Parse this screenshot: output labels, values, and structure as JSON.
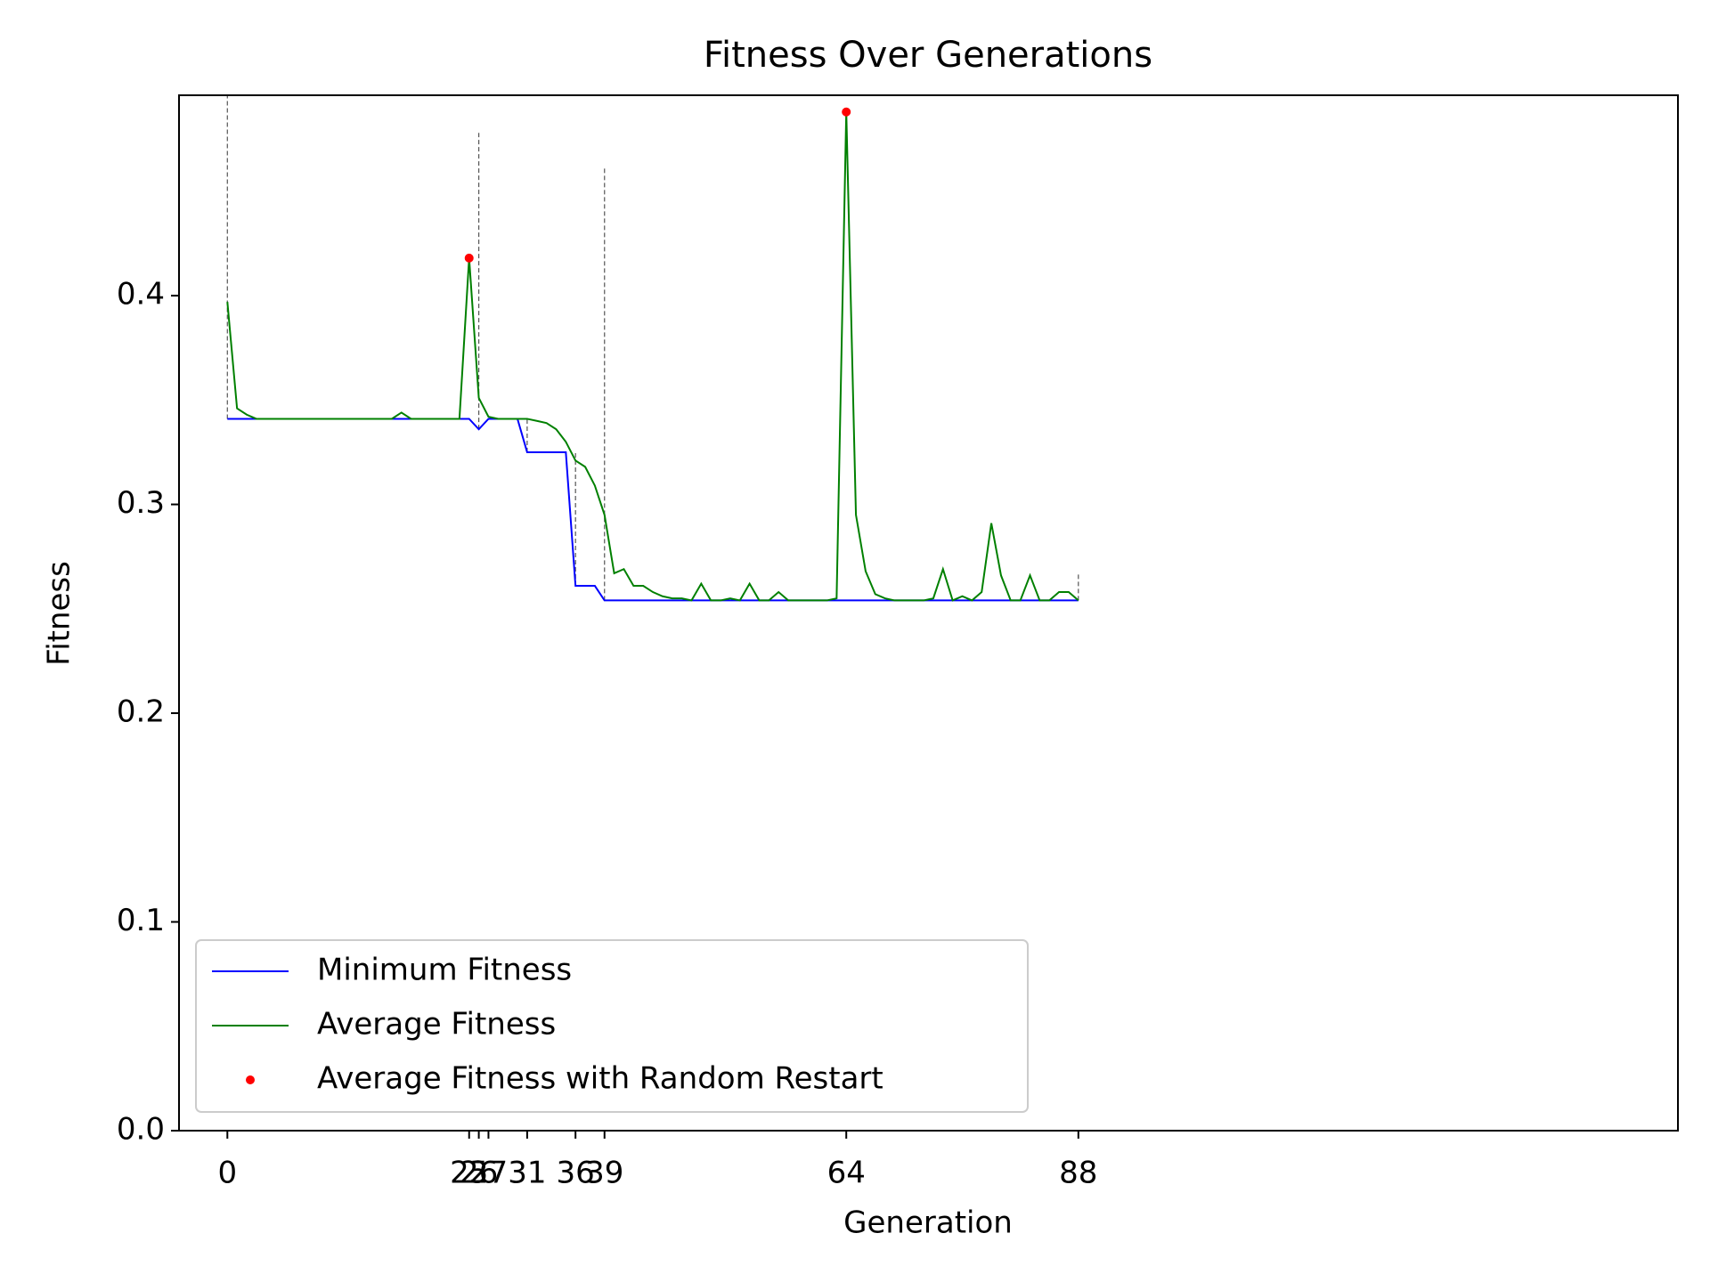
{
  "chart_data": {
    "type": "line",
    "title": "Fitness Over Generations",
    "x_label": "Generation",
    "y_label": "Fitness",
    "x": [
      0,
      1,
      2,
      3,
      4,
      5,
      6,
      7,
      8,
      9,
      10,
      11,
      12,
      13,
      14,
      15,
      16,
      17,
      18,
      19,
      20,
      21,
      22,
      23,
      24,
      25,
      26,
      27,
      28,
      29,
      30,
      31,
      32,
      33,
      34,
      35,
      36,
      37,
      38,
      39,
      40,
      41,
      42,
      43,
      44,
      45,
      46,
      47,
      48,
      49,
      50,
      51,
      52,
      53,
      54,
      55,
      56,
      57,
      58,
      59,
      60,
      61,
      62,
      63,
      64,
      65,
      66,
      67,
      68,
      69,
      70,
      71,
      72,
      73,
      74,
      75,
      76,
      77,
      78,
      79,
      80,
      81,
      82,
      83,
      84,
      85,
      86,
      87,
      88
    ],
    "series": [
      {
        "name": "Minimum Fitness",
        "color": "#0000ff",
        "kind": "line",
        "values": [
          0.341,
          0.341,
          0.341,
          0.341,
          0.341,
          0.341,
          0.341,
          0.341,
          0.341,
          0.341,
          0.341,
          0.341,
          0.341,
          0.341,
          0.341,
          0.341,
          0.341,
          0.341,
          0.341,
          0.341,
          0.341,
          0.341,
          0.341,
          0.341,
          0.341,
          0.341,
          0.336,
          0.341,
          0.341,
          0.341,
          0.341,
          0.325,
          0.325,
          0.325,
          0.325,
          0.325,
          0.261,
          0.261,
          0.261,
          0.254,
          0.254,
          0.254,
          0.254,
          0.254,
          0.254,
          0.254,
          0.254,
          0.254,
          0.254,
          0.254,
          0.254,
          0.254,
          0.254,
          0.254,
          0.254,
          0.254,
          0.254,
          0.254,
          0.254,
          0.254,
          0.254,
          0.254,
          0.254,
          0.254,
          0.254,
          0.254,
          0.254,
          0.254,
          0.254,
          0.254,
          0.254,
          0.254,
          0.254,
          0.254,
          0.254,
          0.254,
          0.254,
          0.254,
          0.254,
          0.254,
          0.254,
          0.254,
          0.254,
          0.254,
          0.254,
          0.254,
          0.254,
          0.254,
          0.254
        ]
      },
      {
        "name": "Average Fitness",
        "color": "#008000",
        "kind": "line",
        "values": [
          0.397,
          0.346,
          0.343,
          0.341,
          0.341,
          0.341,
          0.341,
          0.341,
          0.341,
          0.341,
          0.341,
          0.341,
          0.341,
          0.341,
          0.341,
          0.341,
          0.341,
          0.341,
          0.344,
          0.341,
          0.341,
          0.341,
          0.341,
          0.341,
          0.341,
          0.418,
          0.351,
          0.342,
          0.341,
          0.341,
          0.341,
          0.341,
          0.34,
          0.339,
          0.336,
          0.33,
          0.321,
          0.318,
          0.309,
          0.295,
          0.267,
          0.269,
          0.261,
          0.261,
          0.258,
          0.256,
          0.255,
          0.255,
          0.254,
          0.262,
          0.254,
          0.254,
          0.255,
          0.254,
          0.262,
          0.254,
          0.254,
          0.258,
          0.254,
          0.254,
          0.254,
          0.254,
          0.254,
          0.255,
          0.488,
          0.295,
          0.268,
          0.257,
          0.255,
          0.254,
          0.254,
          0.254,
          0.254,
          0.255,
          0.269,
          0.254,
          0.256,
          0.254,
          0.258,
          0.291,
          0.266,
          0.254,
          0.254,
          0.266,
          0.254,
          0.254,
          0.258,
          0.258,
          0.254
        ]
      },
      {
        "name": "Average Fitness with Random Restart",
        "color": "#ff0000",
        "kind": "scatter",
        "x": [
          25,
          64
        ],
        "values": [
          0.418,
          0.488
        ]
      }
    ],
    "restart_lines": {
      "x": [
        0,
        26,
        31,
        36,
        39,
        88
      ],
      "y_start": [
        0.341,
        0.336,
        0.325,
        0.261,
        0.254,
        0.254
      ],
      "y_end": [
        0.496,
        0.478,
        0.341,
        0.325,
        0.462,
        0.267
      ],
      "color": "#555555"
    },
    "xlim": [
      -5,
      150
    ],
    "xticks": [
      0,
      25,
      26,
      27,
      31,
      36,
      39,
      64,
      88
    ],
    "ylim": [
      0,
      0.496
    ],
    "yticks": [
      {
        "value": 0,
        "label": "0.0"
      },
      0.1,
      0.2,
      0.3,
      0.4
    ],
    "legend": "lower left",
    "grid": false
  }
}
